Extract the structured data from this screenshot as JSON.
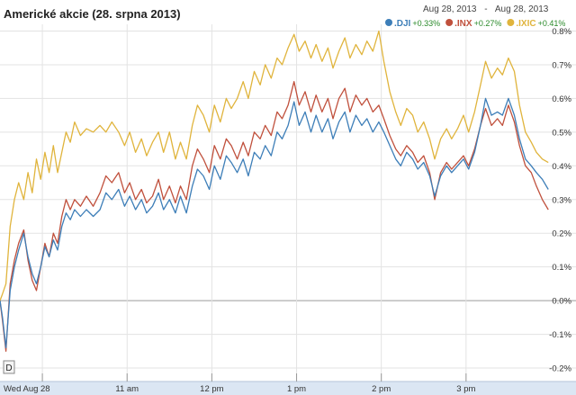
{
  "chart_data": {
    "type": "line",
    "title": "Americké akcie (28. srpna 2013)",
    "date_range": {
      "from": "Aug 28, 2013",
      "separator": "-",
      "to": "Aug 28, 2013"
    },
    "button_label": "D",
    "x_tick_labels": [
      "Wed Aug 28",
      "11 am",
      "12 pm",
      "1 pm",
      "2 pm",
      "3 pm"
    ],
    "x_ticks_hours": [
      10,
      11,
      12,
      13,
      14,
      15
    ],
    "xlim_hours": [
      9.5,
      16.0
    ],
    "y_ticks": [
      -0.2,
      -0.1,
      0.0,
      0.1,
      0.2,
      0.3,
      0.4,
      0.5,
      0.6,
      0.7,
      0.8
    ],
    "y_tick_labels": [
      "-0.2%",
      "-0.1%",
      "0.0%",
      "0.1%",
      "0.2%",
      "0.3%",
      "0.4%",
      "0.5%",
      "0.6%",
      "0.7%",
      "0.8%"
    ],
    "ylim": [
      -0.24,
      0.82
    ],
    "grid": true,
    "legend_position": "top-right",
    "series": [
      {
        "name": ".DJI",
        "change": "+0.33%",
        "color": "#3d7eb8",
        "points": [
          [
            9.5,
            0.0
          ],
          [
            9.53,
            -0.05
          ],
          [
            9.57,
            -0.14
          ],
          [
            9.62,
            0.03
          ],
          [
            9.67,
            0.1
          ],
          [
            9.72,
            0.15
          ],
          [
            9.78,
            0.2
          ],
          [
            9.83,
            0.13
          ],
          [
            9.88,
            0.08
          ],
          [
            9.93,
            0.05
          ],
          [
            9.98,
            0.1
          ],
          [
            10.03,
            0.16
          ],
          [
            10.08,
            0.13
          ],
          [
            10.13,
            0.18
          ],
          [
            10.18,
            0.15
          ],
          [
            10.23,
            0.22
          ],
          [
            10.28,
            0.26
          ],
          [
            10.33,
            0.24
          ],
          [
            10.38,
            0.27
          ],
          [
            10.45,
            0.25
          ],
          [
            10.52,
            0.27
          ],
          [
            10.6,
            0.25
          ],
          [
            10.68,
            0.27
          ],
          [
            10.75,
            0.32
          ],
          [
            10.82,
            0.3
          ],
          [
            10.9,
            0.33
          ],
          [
            10.97,
            0.28
          ],
          [
            11.03,
            0.31
          ],
          [
            11.1,
            0.27
          ],
          [
            11.17,
            0.3
          ],
          [
            11.23,
            0.26
          ],
          [
            11.3,
            0.28
          ],
          [
            11.37,
            0.32
          ],
          [
            11.43,
            0.27
          ],
          [
            11.5,
            0.3
          ],
          [
            11.57,
            0.26
          ],
          [
            11.63,
            0.31
          ],
          [
            11.7,
            0.26
          ],
          [
            11.77,
            0.34
          ],
          [
            11.83,
            0.39
          ],
          [
            11.9,
            0.37
          ],
          [
            11.97,
            0.33
          ],
          [
            12.03,
            0.4
          ],
          [
            12.1,
            0.36
          ],
          [
            12.17,
            0.43
          ],
          [
            12.23,
            0.41
          ],
          [
            12.3,
            0.38
          ],
          [
            12.37,
            0.42
          ],
          [
            12.43,
            0.37
          ],
          [
            12.5,
            0.44
          ],
          [
            12.57,
            0.42
          ],
          [
            12.63,
            0.46
          ],
          [
            12.7,
            0.43
          ],
          [
            12.77,
            0.5
          ],
          [
            12.83,
            0.48
          ],
          [
            12.9,
            0.52
          ],
          [
            12.97,
            0.59
          ],
          [
            13.03,
            0.52
          ],
          [
            13.1,
            0.56
          ],
          [
            13.17,
            0.5
          ],
          [
            13.23,
            0.55
          ],
          [
            13.3,
            0.5
          ],
          [
            13.37,
            0.54
          ],
          [
            13.43,
            0.48
          ],
          [
            13.5,
            0.53
          ],
          [
            13.57,
            0.56
          ],
          [
            13.63,
            0.5
          ],
          [
            13.7,
            0.55
          ],
          [
            13.77,
            0.52
          ],
          [
            13.83,
            0.54
          ],
          [
            13.9,
            0.5
          ],
          [
            13.97,
            0.53
          ],
          [
            14.03,
            0.5
          ],
          [
            14.1,
            0.46
          ],
          [
            14.17,
            0.42
          ],
          [
            14.23,
            0.4
          ],
          [
            14.3,
            0.44
          ],
          [
            14.37,
            0.42
          ],
          [
            14.43,
            0.39
          ],
          [
            14.5,
            0.41
          ],
          [
            14.57,
            0.37
          ],
          [
            14.63,
            0.31
          ],
          [
            14.7,
            0.37
          ],
          [
            14.77,
            0.4
          ],
          [
            14.83,
            0.38
          ],
          [
            14.9,
            0.4
          ],
          [
            14.97,
            0.42
          ],
          [
            15.03,
            0.39
          ],
          [
            15.1,
            0.44
          ],
          [
            15.17,
            0.52
          ],
          [
            15.23,
            0.6
          ],
          [
            15.3,
            0.55
          ],
          [
            15.37,
            0.56
          ],
          [
            15.43,
            0.55
          ],
          [
            15.5,
            0.6
          ],
          [
            15.57,
            0.55
          ],
          [
            15.63,
            0.48
          ],
          [
            15.7,
            0.42
          ],
          [
            15.77,
            0.4
          ],
          [
            15.83,
            0.38
          ],
          [
            15.9,
            0.36
          ],
          [
            15.97,
            0.33
          ]
        ]
      },
      {
        "name": ".INX",
        "change": "+0.27%",
        "color": "#c0503c",
        "points": [
          [
            9.5,
            0.0
          ],
          [
            9.53,
            -0.06
          ],
          [
            9.57,
            -0.15
          ],
          [
            9.62,
            0.05
          ],
          [
            9.67,
            0.12
          ],
          [
            9.72,
            0.17
          ],
          [
            9.78,
            0.21
          ],
          [
            9.83,
            0.12
          ],
          [
            9.88,
            0.06
          ],
          [
            9.93,
            0.03
          ],
          [
            9.98,
            0.1
          ],
          [
            10.03,
            0.17
          ],
          [
            10.08,
            0.13
          ],
          [
            10.13,
            0.2
          ],
          [
            10.18,
            0.17
          ],
          [
            10.23,
            0.25
          ],
          [
            10.28,
            0.3
          ],
          [
            10.33,
            0.27
          ],
          [
            10.38,
            0.3
          ],
          [
            10.45,
            0.28
          ],
          [
            10.52,
            0.31
          ],
          [
            10.6,
            0.28
          ],
          [
            10.68,
            0.32
          ],
          [
            10.75,
            0.37
          ],
          [
            10.82,
            0.35
          ],
          [
            10.9,
            0.38
          ],
          [
            10.97,
            0.32
          ],
          [
            11.03,
            0.35
          ],
          [
            11.1,
            0.3
          ],
          [
            11.17,
            0.33
          ],
          [
            11.23,
            0.29
          ],
          [
            11.3,
            0.31
          ],
          [
            11.37,
            0.36
          ],
          [
            11.43,
            0.3
          ],
          [
            11.5,
            0.34
          ],
          [
            11.57,
            0.29
          ],
          [
            11.63,
            0.34
          ],
          [
            11.7,
            0.3
          ],
          [
            11.77,
            0.4
          ],
          [
            11.83,
            0.45
          ],
          [
            11.9,
            0.42
          ],
          [
            11.97,
            0.38
          ],
          [
            12.03,
            0.46
          ],
          [
            12.1,
            0.42
          ],
          [
            12.17,
            0.48
          ],
          [
            12.23,
            0.46
          ],
          [
            12.3,
            0.42
          ],
          [
            12.37,
            0.47
          ],
          [
            12.43,
            0.43
          ],
          [
            12.5,
            0.5
          ],
          [
            12.57,
            0.48
          ],
          [
            12.63,
            0.52
          ],
          [
            12.7,
            0.49
          ],
          [
            12.77,
            0.56
          ],
          [
            12.83,
            0.54
          ],
          [
            12.9,
            0.58
          ],
          [
            12.97,
            0.65
          ],
          [
            13.03,
            0.58
          ],
          [
            13.1,
            0.62
          ],
          [
            13.17,
            0.56
          ],
          [
            13.23,
            0.61
          ],
          [
            13.3,
            0.56
          ],
          [
            13.37,
            0.6
          ],
          [
            13.43,
            0.54
          ],
          [
            13.5,
            0.6
          ],
          [
            13.57,
            0.63
          ],
          [
            13.63,
            0.56
          ],
          [
            13.7,
            0.61
          ],
          [
            13.77,
            0.58
          ],
          [
            13.83,
            0.6
          ],
          [
            13.9,
            0.56
          ],
          [
            13.97,
            0.58
          ],
          [
            14.03,
            0.54
          ],
          [
            14.1,
            0.49
          ],
          [
            14.17,
            0.45
          ],
          [
            14.23,
            0.43
          ],
          [
            14.3,
            0.46
          ],
          [
            14.37,
            0.44
          ],
          [
            14.43,
            0.41
          ],
          [
            14.5,
            0.43
          ],
          [
            14.57,
            0.38
          ],
          [
            14.63,
            0.3
          ],
          [
            14.7,
            0.38
          ],
          [
            14.77,
            0.41
          ],
          [
            14.83,
            0.39
          ],
          [
            14.9,
            0.41
          ],
          [
            14.97,
            0.43
          ],
          [
            15.03,
            0.4
          ],
          [
            15.1,
            0.45
          ],
          [
            15.17,
            0.52
          ],
          [
            15.23,
            0.57
          ],
          [
            15.3,
            0.52
          ],
          [
            15.37,
            0.54
          ],
          [
            15.43,
            0.52
          ],
          [
            15.5,
            0.58
          ],
          [
            15.57,
            0.53
          ],
          [
            15.63,
            0.46
          ],
          [
            15.7,
            0.4
          ],
          [
            15.77,
            0.38
          ],
          [
            15.83,
            0.34
          ],
          [
            15.9,
            0.3
          ],
          [
            15.97,
            0.27
          ]
        ]
      },
      {
        "name": ".IXIC",
        "change": "+0.41%",
        "color": "#e0b43c",
        "points": [
          [
            9.5,
            0.0
          ],
          [
            9.53,
            0.02
          ],
          [
            9.57,
            0.05
          ],
          [
            9.62,
            0.22
          ],
          [
            9.67,
            0.3
          ],
          [
            9.72,
            0.35
          ],
          [
            9.78,
            0.3
          ],
          [
            9.83,
            0.38
          ],
          [
            9.88,
            0.32
          ],
          [
            9.93,
            0.42
          ],
          [
            9.98,
            0.36
          ],
          [
            10.03,
            0.44
          ],
          [
            10.08,
            0.38
          ],
          [
            10.13,
            0.46
          ],
          [
            10.18,
            0.38
          ],
          [
            10.23,
            0.44
          ],
          [
            10.28,
            0.5
          ],
          [
            10.33,
            0.47
          ],
          [
            10.38,
            0.53
          ],
          [
            10.45,
            0.49
          ],
          [
            10.52,
            0.51
          ],
          [
            10.6,
            0.5
          ],
          [
            10.68,
            0.52
          ],
          [
            10.75,
            0.5
          ],
          [
            10.82,
            0.53
          ],
          [
            10.9,
            0.5
          ],
          [
            10.97,
            0.46
          ],
          [
            11.03,
            0.5
          ],
          [
            11.1,
            0.44
          ],
          [
            11.17,
            0.48
          ],
          [
            11.23,
            0.43
          ],
          [
            11.3,
            0.47
          ],
          [
            11.37,
            0.5
          ],
          [
            11.43,
            0.44
          ],
          [
            11.5,
            0.5
          ],
          [
            11.57,
            0.42
          ],
          [
            11.63,
            0.47
          ],
          [
            11.7,
            0.42
          ],
          [
            11.77,
            0.52
          ],
          [
            11.83,
            0.58
          ],
          [
            11.9,
            0.55
          ],
          [
            11.97,
            0.5
          ],
          [
            12.03,
            0.58
          ],
          [
            12.1,
            0.53
          ],
          [
            12.17,
            0.6
          ],
          [
            12.23,
            0.57
          ],
          [
            12.3,
            0.6
          ],
          [
            12.37,
            0.65
          ],
          [
            12.43,
            0.6
          ],
          [
            12.5,
            0.68
          ],
          [
            12.57,
            0.64
          ],
          [
            12.63,
            0.7
          ],
          [
            12.7,
            0.66
          ],
          [
            12.77,
            0.72
          ],
          [
            12.83,
            0.7
          ],
          [
            12.9,
            0.75
          ],
          [
            12.97,
            0.79
          ],
          [
            13.03,
            0.74
          ],
          [
            13.1,
            0.77
          ],
          [
            13.17,
            0.72
          ],
          [
            13.23,
            0.76
          ],
          [
            13.3,
            0.71
          ],
          [
            13.37,
            0.75
          ],
          [
            13.43,
            0.69
          ],
          [
            13.5,
            0.74
          ],
          [
            13.57,
            0.78
          ],
          [
            13.63,
            0.72
          ],
          [
            13.7,
            0.76
          ],
          [
            13.77,
            0.73
          ],
          [
            13.83,
            0.77
          ],
          [
            13.9,
            0.74
          ],
          [
            13.97,
            0.8
          ],
          [
            14.03,
            0.71
          ],
          [
            14.1,
            0.62
          ],
          [
            14.17,
            0.56
          ],
          [
            14.23,
            0.52
          ],
          [
            14.3,
            0.57
          ],
          [
            14.37,
            0.55
          ],
          [
            14.43,
            0.5
          ],
          [
            14.5,
            0.53
          ],
          [
            14.57,
            0.48
          ],
          [
            14.63,
            0.42
          ],
          [
            14.7,
            0.48
          ],
          [
            14.77,
            0.51
          ],
          [
            14.83,
            0.48
          ],
          [
            14.9,
            0.51
          ],
          [
            14.97,
            0.55
          ],
          [
            15.03,
            0.5
          ],
          [
            15.1,
            0.56
          ],
          [
            15.17,
            0.64
          ],
          [
            15.23,
            0.71
          ],
          [
            15.3,
            0.66
          ],
          [
            15.37,
            0.69
          ],
          [
            15.43,
            0.67
          ],
          [
            15.5,
            0.72
          ],
          [
            15.57,
            0.68
          ],
          [
            15.63,
            0.58
          ],
          [
            15.7,
            0.5
          ],
          [
            15.77,
            0.47
          ],
          [
            15.83,
            0.44
          ],
          [
            15.9,
            0.42
          ],
          [
            15.97,
            0.41
          ]
        ]
      }
    ]
  }
}
